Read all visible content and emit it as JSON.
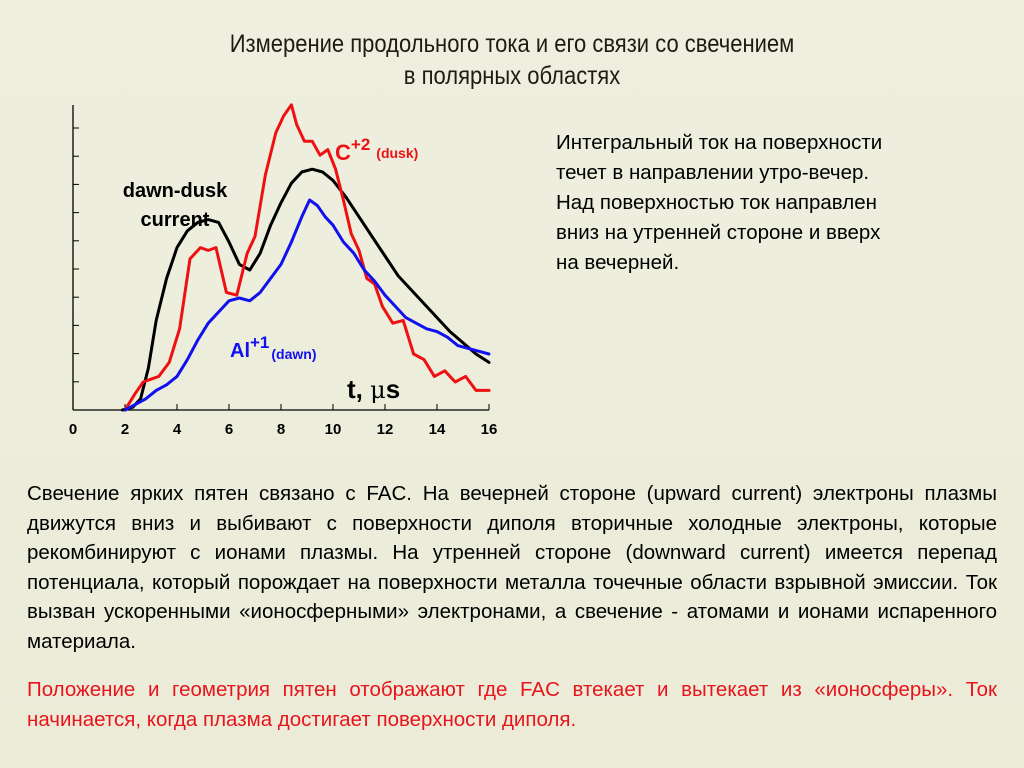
{
  "title": {
    "line1": "Измерение продольного тока и его связи со свечением",
    "line2": "в полярных областях"
  },
  "chart_data": {
    "type": "line",
    "x_ticks": [
      "0",
      "2",
      "4",
      "6",
      "8",
      "10",
      "12",
      "14",
      "16"
    ],
    "xlim": [
      0,
      16
    ],
    "ylim": [
      0,
      10
    ],
    "y_ticks_labeled": false,
    "axis_label": {
      "main": "t, ",
      "mu": "μ",
      "unit": "s"
    },
    "annotations": {
      "dawn_dusk_line1": "dawn-dusk",
      "dawn_dusk_line2": "current",
      "c_main": "C",
      "c_sup": "+2",
      "c_sub": "(dusk)",
      "al_main": "Al",
      "al_sup": "+1",
      "al_sub": "(dawn)"
    },
    "series": [
      {
        "color": "#000000",
        "x": [
          1.9,
          2.3,
          2.6,
          2.9,
          3.2,
          3.6,
          4.0,
          4.4,
          4.8,
          5.2,
          5.6,
          6.0,
          6.4,
          6.8,
          7.2,
          7.6,
          8.0,
          8.4,
          8.8,
          9.2,
          9.6,
          10.0,
          10.5,
          11.0,
          11.5,
          12.0,
          12.5,
          13.0,
          13.5,
          14.0,
          14.5,
          15.0,
          15.5,
          16.0
        ],
        "y": [
          0.0,
          0.1,
          0.4,
          1.5,
          3.2,
          4.7,
          5.8,
          6.4,
          6.7,
          6.8,
          6.7,
          6.0,
          5.2,
          5.0,
          5.6,
          6.6,
          7.4,
          8.1,
          8.5,
          8.6,
          8.5,
          8.2,
          7.6,
          6.9,
          6.2,
          5.5,
          4.8,
          4.3,
          3.8,
          3.3,
          2.8,
          2.4,
          2.0,
          1.7
        ]
      },
      {
        "color": "#ee1111",
        "x": [
          2.0,
          2.4,
          2.7,
          3.0,
          3.3,
          3.7,
          4.1,
          4.5,
          4.9,
          5.2,
          5.5,
          5.9,
          6.3,
          6.7,
          7.0,
          7.4,
          7.8,
          8.1,
          8.4,
          8.6,
          8.9,
          9.2,
          9.5,
          9.8,
          10.1,
          10.4,
          10.7,
          11.0,
          11.3,
          11.6,
          11.9,
          12.3,
          12.7,
          13.1,
          13.5,
          13.9,
          14.3,
          14.7,
          15.1,
          15.5,
          16.0
        ],
        "y": [
          0.0,
          0.6,
          1.0,
          1.1,
          1.2,
          1.7,
          2.9,
          5.4,
          5.8,
          5.7,
          5.8,
          4.2,
          4.1,
          5.6,
          6.2,
          8.4,
          9.9,
          10.5,
          10.9,
          10.2,
          9.6,
          9.6,
          9.1,
          9.3,
          8.6,
          7.5,
          6.3,
          5.7,
          4.7,
          4.5,
          3.7,
          3.1,
          3.2,
          2.0,
          1.8,
          1.2,
          1.4,
          1.0,
          1.2,
          0.7,
          0.7
        ]
      },
      {
        "color": "#1111ee",
        "x": [
          2.0,
          2.4,
          2.8,
          3.2,
          3.6,
          4.0,
          4.4,
          4.8,
          5.2,
          5.6,
          6.0,
          6.4,
          6.8,
          7.2,
          7.6,
          8.0,
          8.4,
          8.8,
          9.1,
          9.4,
          9.7,
          10.0,
          10.4,
          10.8,
          11.2,
          11.6,
          12.0,
          12.4,
          12.8,
          13.2,
          13.6,
          14.0,
          14.4,
          14.8,
          15.2,
          15.6,
          16.0
        ],
        "y": [
          0.0,
          0.2,
          0.4,
          0.7,
          0.9,
          1.2,
          1.8,
          2.5,
          3.1,
          3.5,
          3.9,
          4.0,
          3.9,
          4.2,
          4.7,
          5.2,
          6.0,
          6.9,
          7.5,
          7.3,
          6.9,
          6.6,
          6.0,
          5.6,
          5.0,
          4.6,
          4.1,
          3.7,
          3.3,
          3.1,
          2.9,
          2.8,
          2.6,
          2.3,
          2.2,
          2.1,
          2.0
        ]
      }
    ]
  },
  "side_text": [
    "Интегральный ток на поверхности",
    "течет в направлении утро-вечер.",
    "Над поверхностью ток направлен",
    "вниз на утренней стороне и вверх",
    "на вечерней."
  ],
  "paragraph_black": "Свечение ярких пятен связано с FAC. На вечерней стороне (upward current) электроны плазмы движутся вниз и выбивают с поверхности диполя вторичные холодные электроны, которые рекомбинируют с ионами плазмы. На утренней стороне (downward current) имеется перепад потенциала, который порождает на поверхности металла точечные области взрывной эмиссии. Ток вызван ускоренными «ионосферными» электронами, а свечение - атомами и ионами испаренного материала.",
  "paragraph_red": "Положение и геометрия пятен отображают где FAC втекает и вытекает из «ионосферы». Ток начинается, когда плазма достигает поверхности диполя.",
  "colors": {
    "background": "#eeeedd",
    "dusk": "#ee1111",
    "dawn": "#1111ee",
    "current": "#000000",
    "highlight_text": "#e8141c"
  }
}
